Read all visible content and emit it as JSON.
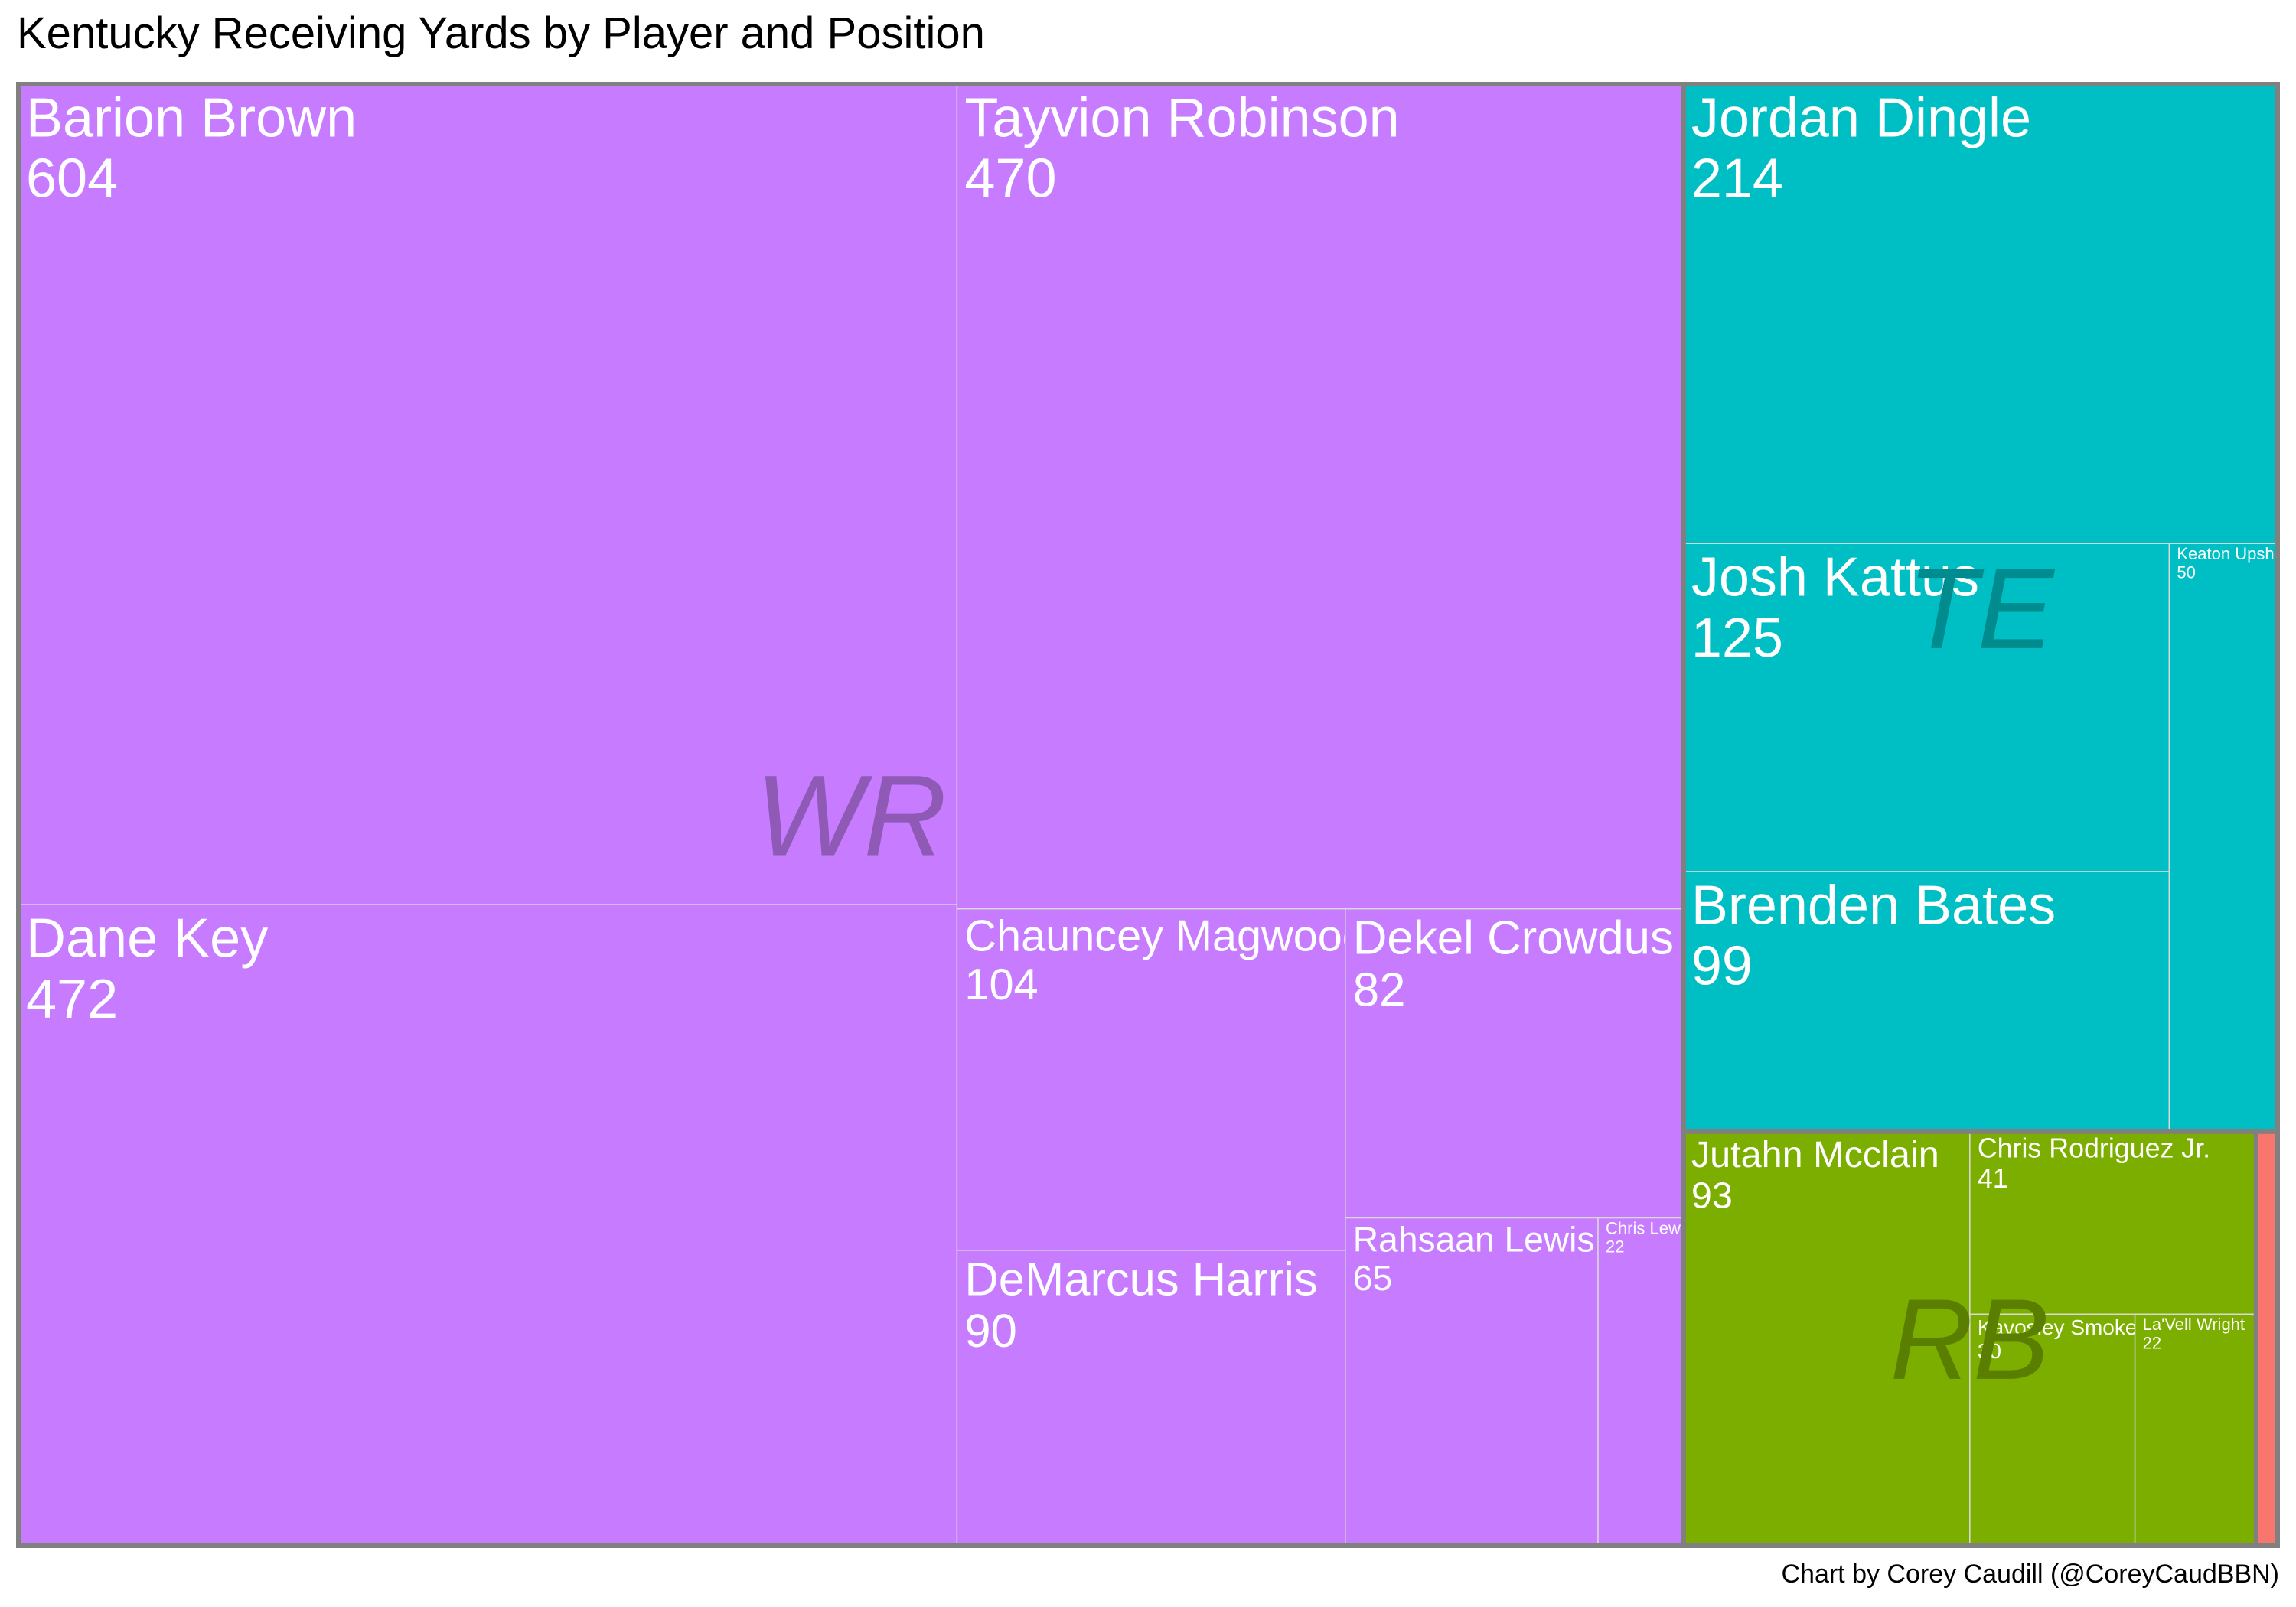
{
  "title": "Kentucky Receiving Yards by Player and Position",
  "credit": "Chart by Corey Caudill (@CoreyCaudBBN)",
  "colors": {
    "WR": "#C77CFF",
    "RB": "#7CAE00",
    "TE": "#00BFC4",
    "QB": "#F8766D",
    "border": "#808080",
    "tile_line": "#D9D9D9",
    "label_WR": "#8E5AB5",
    "label_RB": "#5A7E00",
    "label_TE": "#008B8E"
  },
  "chart_data": {
    "type": "treemap",
    "unit": "receiving yards",
    "groups": [
      {
        "position": "WR",
        "players": [
          {
            "name": "Barion Brown",
            "yards": 604
          },
          {
            "name": "Dane Key",
            "yards": 472
          },
          {
            "name": "Tayvion Robinson",
            "yards": 470
          },
          {
            "name": "Chauncey Magwood",
            "yards": 104
          },
          {
            "name": "DeMarcus Harris",
            "yards": 90
          },
          {
            "name": "Dekel Crowdus",
            "yards": 82
          },
          {
            "name": "Rahsaan Lewis",
            "yards": 65
          },
          {
            "name": "Chris Lewis",
            "yards": 22
          }
        ]
      },
      {
        "position": "TE",
        "players": [
          {
            "name": "Jordan Dingle",
            "yards": 214
          },
          {
            "name": "Josh Kattus",
            "yards": 125
          },
          {
            "name": "Brenden Bates",
            "yards": 99
          },
          {
            "name": "Keaton Upshaw",
            "yards": 50
          }
        ]
      },
      {
        "position": "RB",
        "players": [
          {
            "name": "Jutahn Mcclain",
            "yards": 93
          },
          {
            "name": "Chris Rodriguez Jr.",
            "yards": 41
          },
          {
            "name": "Kavosiey Smoke",
            "yards": 30
          },
          {
            "name": "La'Vell Wright",
            "yards": 22
          }
        ]
      },
      {
        "position": "QB",
        "label_hidden": true,
        "players": [
          {
            "name": "",
            "yards": 7
          }
        ]
      }
    ]
  }
}
